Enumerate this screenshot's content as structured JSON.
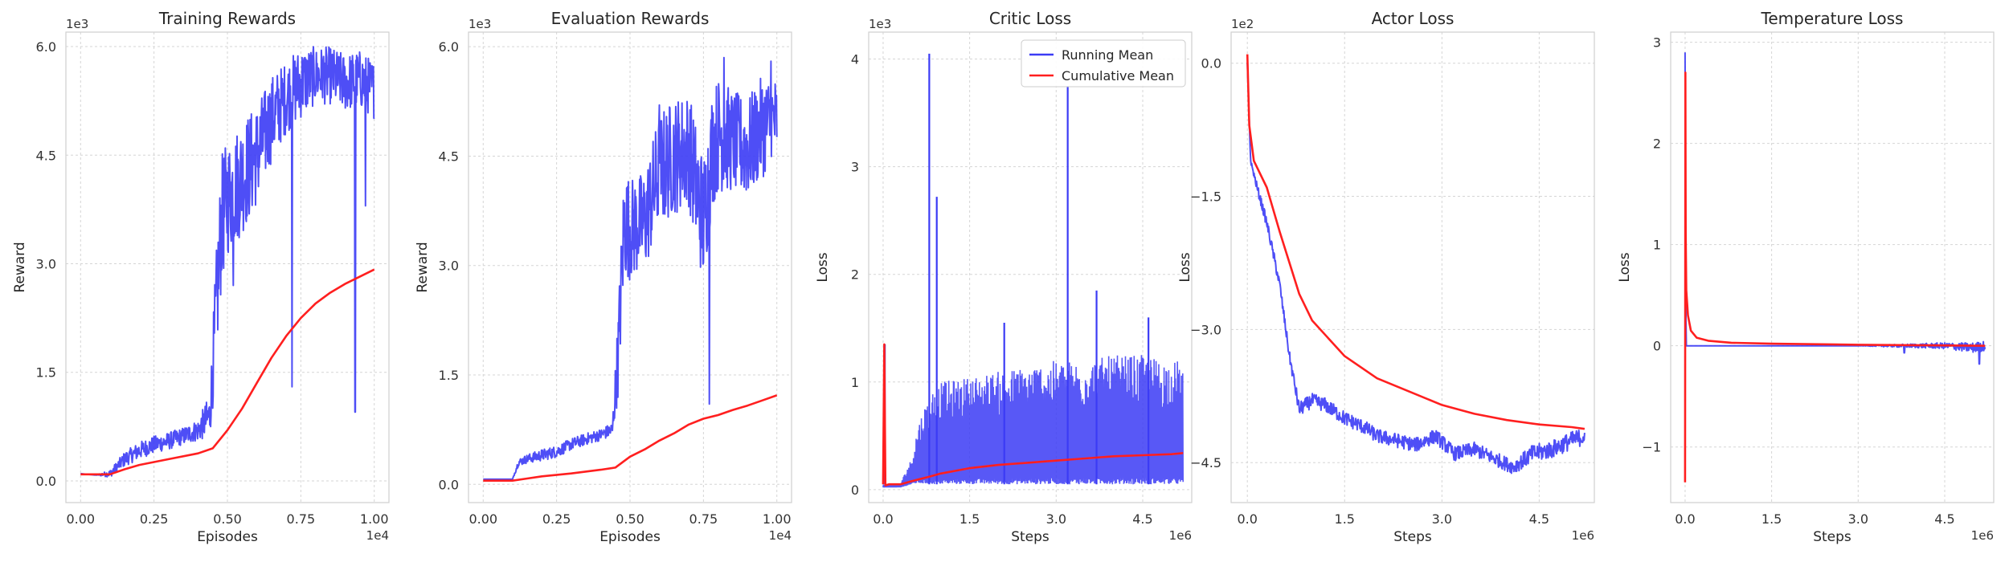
{
  "colors": {
    "running": "#3b3bf5",
    "cumulative": "#ff1f1f",
    "grid": "#d5d5d5",
    "spine": "#cfcfcf"
  },
  "legend": {
    "running": "Running Mean",
    "cumulative": "Cumulative Mean",
    "placement": "top-right of Critic Loss panel"
  },
  "chart_data": [
    {
      "type": "line",
      "title": "Training Rewards",
      "xlabel": "Episodes",
      "ylabel": "Reward",
      "x_offset_label": "1e4",
      "y_offset_label": "1e3",
      "xlim": [
        -0.05,
        1.05
      ],
      "ylim": [
        -0.3,
        6.2
      ],
      "xticks": [
        0.0,
        0.25,
        0.5,
        0.75,
        1.0
      ],
      "xtick_labels": [
        "0.00",
        "0.25",
        "0.50",
        "0.75",
        "1.00"
      ],
      "yticks": [
        0.0,
        1.5,
        3.0,
        4.5,
        6.0
      ],
      "ytick_labels": [
        "0.0",
        "1.5",
        "3.0",
        "4.5",
        "6.0"
      ],
      "grid": true,
      "series": [
        {
          "name": "Running Mean",
          "noisy": true,
          "x": [
            0.0,
            0.05,
            0.1,
            0.15,
            0.2,
            0.25,
            0.3,
            0.35,
            0.4,
            0.44,
            0.46,
            0.48,
            0.5,
            0.55,
            0.6,
            0.65,
            0.7,
            0.75,
            0.8,
            0.85,
            0.9,
            0.95,
            1.0
          ],
          "y": [
            0.1,
            0.08,
            0.1,
            0.3,
            0.42,
            0.5,
            0.55,
            0.62,
            0.7,
            0.9,
            2.2,
            3.6,
            3.9,
            4.2,
            4.5,
            5.0,
            5.3,
            5.5,
            5.6,
            5.6,
            5.5,
            5.55,
            5.4
          ],
          "amp": [
            0,
            0,
            0.05,
            0.1,
            0.12,
            0.12,
            0.12,
            0.12,
            0.15,
            0.3,
            0.8,
            0.9,
            0.8,
            0.8,
            0.7,
            0.6,
            0.5,
            0.5,
            0.4,
            0.4,
            0.4,
            0.4,
            0.4
          ],
          "spikes": [
            [
              0.72,
              1.3
            ],
            [
              0.935,
              0.95
            ],
            [
              0.97,
              3.8
            ],
            [
              0.52,
              2.7
            ]
          ]
        },
        {
          "name": "Cumulative Mean",
          "x": [
            0.0,
            0.05,
            0.1,
            0.15,
            0.2,
            0.3,
            0.4,
            0.45,
            0.5,
            0.55,
            0.6,
            0.65,
            0.7,
            0.75,
            0.8,
            0.85,
            0.9,
            0.95,
            1.0
          ],
          "y": [
            0.09,
            0.09,
            0.09,
            0.16,
            0.22,
            0.3,
            0.38,
            0.45,
            0.7,
            1.0,
            1.35,
            1.7,
            2.0,
            2.25,
            2.45,
            2.6,
            2.72,
            2.82,
            2.92
          ]
        }
      ]
    },
    {
      "type": "line",
      "title": "Evaluation Rewards",
      "xlabel": "Episodes",
      "ylabel": "Reward",
      "x_offset_label": "1e4",
      "y_offset_label": "1e3",
      "xlim": [
        -0.05,
        1.05
      ],
      "ylim": [
        -0.25,
        6.2
      ],
      "xticks": [
        0.0,
        0.25,
        0.5,
        0.75,
        1.0
      ],
      "xtick_labels": [
        "0.00",
        "0.25",
        "0.50",
        "0.75",
        "1.00"
      ],
      "yticks": [
        0.0,
        1.5,
        3.0,
        4.5,
        6.0
      ],
      "ytick_labels": [
        "0.0",
        "1.5",
        "3.0",
        "4.5",
        "6.0"
      ],
      "grid": true,
      "series": [
        {
          "name": "Running Mean",
          "noisy": true,
          "x": [
            0.0,
            0.05,
            0.1,
            0.12,
            0.15,
            0.2,
            0.25,
            0.3,
            0.35,
            0.4,
            0.44,
            0.46,
            0.48,
            0.5,
            0.55,
            0.6,
            0.65,
            0.7,
            0.75,
            0.78,
            0.8,
            0.85,
            0.9,
            0.95,
            1.0
          ],
          "y": [
            0.07,
            0.07,
            0.07,
            0.3,
            0.35,
            0.4,
            0.45,
            0.55,
            0.62,
            0.68,
            0.75,
            1.8,
            3.6,
            3.5,
            3.6,
            4.3,
            4.5,
            4.6,
            3.6,
            4.6,
            4.8,
            4.7,
            4.6,
            4.9,
            5.0
          ],
          "amp": [
            0,
            0,
            0,
            0.05,
            0.06,
            0.08,
            0.08,
            0.08,
            0.08,
            0.08,
            0.1,
            0.6,
            0.8,
            0.7,
            0.7,
            0.8,
            0.8,
            0.8,
            0.9,
            0.8,
            0.8,
            0.7,
            0.7,
            0.7,
            0.6
          ],
          "spikes": [
            [
              0.77,
              1.1
            ],
            [
              0.6,
              5.2
            ],
            [
              0.82,
              5.85
            ],
            [
              0.98,
              5.8
            ]
          ]
        },
        {
          "name": "Cumulative Mean",
          "x": [
            0.0,
            0.05,
            0.1,
            0.15,
            0.2,
            0.3,
            0.4,
            0.45,
            0.5,
            0.55,
            0.6,
            0.65,
            0.7,
            0.75,
            0.8,
            0.85,
            0.9,
            0.95,
            1.0
          ],
          "y": [
            0.05,
            0.05,
            0.05,
            0.08,
            0.11,
            0.15,
            0.2,
            0.23,
            0.38,
            0.48,
            0.6,
            0.7,
            0.82,
            0.9,
            0.95,
            1.02,
            1.08,
            1.15,
            1.22
          ]
        }
      ]
    },
    {
      "type": "line",
      "title": "Critic Loss",
      "xlabel": "Steps",
      "ylabel": "Loss",
      "x_offset_label": "1e6",
      "y_offset_label": "1e3",
      "xlim": [
        -0.25,
        5.35
      ],
      "ylim": [
        -0.12,
        4.25
      ],
      "xticks": [
        0.0,
        1.5,
        3.0,
        4.5
      ],
      "xtick_labels": [
        "0.0",
        "1.5",
        "3.0",
        "4.5"
      ],
      "yticks": [
        0,
        1,
        2,
        3,
        4
      ],
      "ytick_labels": [
        "0",
        "1",
        "2",
        "3",
        "4"
      ],
      "grid": true,
      "series": [
        {
          "name": "Running Mean",
          "band": true,
          "x": [
            0.0,
            0.3,
            0.5,
            0.6,
            0.8,
            1.0,
            1.5,
            2.0,
            2.5,
            3.0,
            3.5,
            4.0,
            4.5,
            5.0,
            5.2
          ],
          "low": [
            0.02,
            0.02,
            0.05,
            0.06,
            0.05,
            0.05,
            0.05,
            0.05,
            0.05,
            0.05,
            0.05,
            0.05,
            0.05,
            0.05,
            0.05
          ],
          "high": [
            0.05,
            0.06,
            0.3,
            0.6,
            0.9,
            1.0,
            1.05,
            1.1,
            1.15,
            1.2,
            1.2,
            1.25,
            1.25,
            1.2,
            1.2
          ],
          "spikes": [
            [
              0.03,
              1.35
            ],
            [
              0.8,
              4.05
            ],
            [
              0.93,
              2.72
            ],
            [
              3.2,
              3.75
            ],
            [
              3.7,
              1.85
            ],
            [
              2.1,
              1.55
            ],
            [
              4.6,
              1.6
            ]
          ]
        },
        {
          "name": "Cumulative Mean",
          "x": [
            0.0,
            0.02,
            0.04,
            0.1,
            0.3,
            0.5,
            0.8,
            1.0,
            1.5,
            2.0,
            2.5,
            3.0,
            3.5,
            4.0,
            4.5,
            5.0,
            5.2
          ],
          "y": [
            0.05,
            1.35,
            0.04,
            0.05,
            0.05,
            0.08,
            0.12,
            0.15,
            0.2,
            0.23,
            0.25,
            0.27,
            0.29,
            0.31,
            0.32,
            0.33,
            0.34
          ]
        }
      ]
    },
    {
      "type": "line",
      "title": "Actor Loss",
      "xlabel": "Steps",
      "ylabel": "Loss",
      "x_offset_label": "1e6",
      "y_offset_label": "1e2",
      "xlim": [
        -0.25,
        5.35
      ],
      "ylim": [
        -4.95,
        0.35
      ],
      "xticks": [
        0.0,
        1.5,
        3.0,
        4.5
      ],
      "xtick_labels": [
        "0.0",
        "1.5",
        "3.0",
        "4.5"
      ],
      "yticks": [
        0.0,
        -1.5,
        -3.0,
        -4.5
      ],
      "ytick_labels": [
        "0.0",
        "−1.5",
        "−3.0",
        "−4.5"
      ],
      "grid": true,
      "series": [
        {
          "name": "Running Mean",
          "noisy": true,
          "x": [
            0.0,
            0.05,
            0.15,
            0.3,
            0.5,
            0.65,
            0.8,
            1.0,
            1.2,
            1.5,
            1.8,
            2.0,
            2.3,
            2.6,
            2.9,
            3.2,
            3.5,
            3.8,
            4.1,
            4.4,
            4.7,
            5.0,
            5.2
          ],
          "y": [
            0.0,
            -1.1,
            -1.4,
            -1.8,
            -2.5,
            -3.3,
            -3.9,
            -3.8,
            -3.85,
            -4.0,
            -4.1,
            -4.2,
            -4.25,
            -4.3,
            -4.2,
            -4.4,
            -4.35,
            -4.45,
            -4.55,
            -4.4,
            -4.35,
            -4.25,
            -4.2
          ],
          "amp": [
            0,
            0.02,
            0.05,
            0.06,
            0.06,
            0.06,
            0.08,
            0.08,
            0.08,
            0.08,
            0.08,
            0.08,
            0.08,
            0.08,
            0.08,
            0.08,
            0.08,
            0.08,
            0.08,
            0.1,
            0.1,
            0.1,
            0.1
          ]
        },
        {
          "name": "Cumulative Mean",
          "x": [
            0.0,
            0.03,
            0.1,
            0.3,
            0.5,
            0.8,
            1.0,
            1.5,
            2.0,
            2.5,
            3.0,
            3.5,
            4.0,
            4.5,
            5.0,
            5.2
          ],
          "y": [
            0.1,
            -0.7,
            -1.1,
            -1.4,
            -1.9,
            -2.6,
            -2.9,
            -3.3,
            -3.55,
            -3.7,
            -3.85,
            -3.95,
            -4.02,
            -4.07,
            -4.1,
            -4.12
          ]
        }
      ]
    },
    {
      "type": "line",
      "title": "Temperature Loss",
      "xlabel": "Steps",
      "ylabel": "Loss",
      "x_offset_label": "1e6",
      "y_offset_label": "",
      "xlim": [
        -0.25,
        5.35
      ],
      "ylim": [
        -1.55,
        3.1
      ],
      "xticks": [
        0.0,
        1.5,
        3.0,
        4.5
      ],
      "xtick_labels": [
        "0.0",
        "1.5",
        "3.0",
        "4.5"
      ],
      "yticks": [
        -1,
        0,
        1,
        2,
        3
      ],
      "ytick_labels": [
        "−1",
        "0",
        "1",
        "2",
        "3"
      ],
      "grid": true,
      "series": [
        {
          "name": "Running Mean",
          "noisy": true,
          "x": [
            0.0,
            0.01,
            0.02,
            0.05,
            0.5,
            1.0,
            2.0,
            3.0,
            4.0,
            4.5,
            5.0,
            5.2
          ],
          "y": [
            2.9,
            0.5,
            0.0,
            0.0,
            0.0,
            0.0,
            0.0,
            0.0,
            0.0,
            0.0,
            -0.02,
            0.0
          ],
          "amp": [
            0,
            0,
            0,
            0,
            0,
            0,
            0,
            0,
            0.02,
            0.03,
            0.05,
            0.05
          ],
          "spikes": [
            [
              5.1,
              -0.18
            ],
            [
              3.8,
              -0.07
            ]
          ]
        },
        {
          "name": "Cumulative Mean",
          "x": [
            0.0,
            0.005,
            0.01,
            0.02,
            0.05,
            0.1,
            0.2,
            0.4,
            0.8,
            1.5,
            3.0,
            5.2
          ],
          "y": [
            -1.35,
            2.7,
            1.1,
            0.55,
            0.3,
            0.15,
            0.08,
            0.05,
            0.03,
            0.02,
            0.01,
            0.0
          ]
        }
      ]
    }
  ]
}
